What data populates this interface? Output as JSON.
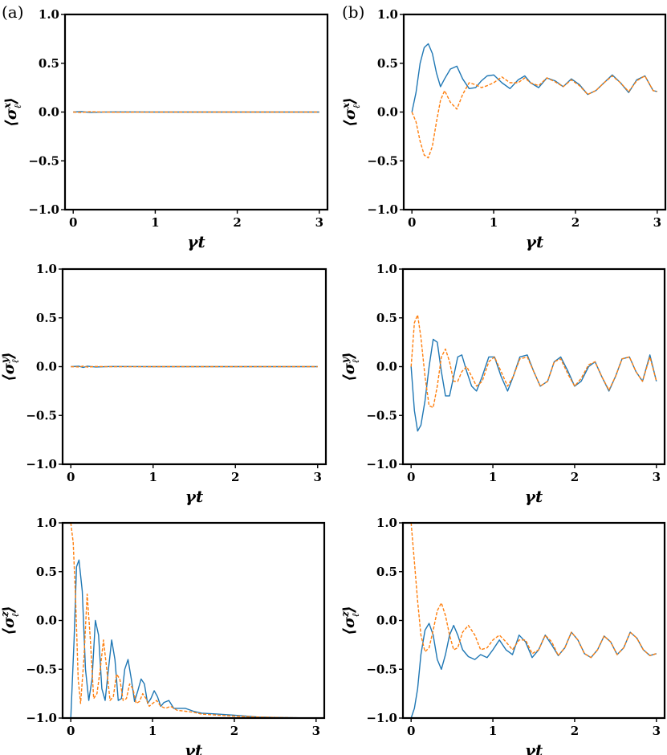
{
  "panel_labels": [
    "(a)",
    "(b)"
  ],
  "colors": {
    "series1": "#1f77b4",
    "series2": "#ff7f0e",
    "axis": "#000000"
  },
  "chart_data": [
    {
      "type": "line",
      "panel": "(a)",
      "row": 0,
      "xlabel": "γt",
      "ylabel": "⟨σ_ℓ^x⟩",
      "ylabel_base": "⟨σ",
      "ylabel_sup": "x",
      "ylabel_sub": "ℓ",
      "ylabel_close": "⟩",
      "xlim": [
        -0.1,
        3.1
      ],
      "ylim": [
        -1.0,
        1.0
      ],
      "xticks": [
        0,
        1,
        2,
        3
      ],
      "xtick_labels": [
        "0",
        "1",
        "2",
        "3"
      ],
      "yticks": [
        -1.0,
        -0.5,
        0.0,
        0.5,
        1.0
      ],
      "ytick_labels": [
        "−1.0",
        "−0.5",
        "0.0",
        "0.5",
        "1.0"
      ],
      "series": [
        {
          "style": "solid",
          "color": "#1f77b4",
          "x": [
            0,
            0.1,
            0.2,
            0.5,
            1,
            2,
            3
          ],
          "y": [
            0,
            0.005,
            -0.003,
            0.002,
            0,
            0,
            0
          ]
        },
        {
          "style": "dashed",
          "color": "#ff7f0e",
          "x": [
            0,
            0.1,
            0.2,
            0.5,
            1,
            2,
            3
          ],
          "y": [
            0,
            -0.004,
            0.003,
            -0.002,
            0,
            0,
            0
          ]
        }
      ]
    },
    {
      "type": "line",
      "panel": "(b)",
      "row": 0,
      "xlabel": "γt",
      "ylabel": "⟨σ_ℓ^x⟩",
      "ylabel_base": "⟨σ",
      "ylabel_sup": "x",
      "ylabel_sub": "ℓ",
      "ylabel_close": "⟩",
      "xlim": [
        -0.1,
        3.1
      ],
      "ylim": [
        -1.0,
        1.0
      ],
      "xticks": [
        0,
        1,
        2,
        3
      ],
      "xtick_labels": [
        "0",
        "1",
        "2",
        "3"
      ],
      "yticks": [
        -1.0,
        -0.5,
        0.0,
        0.5,
        1.0
      ],
      "ytick_labels": [
        "−1.0",
        "−0.5",
        "0.0",
        "0.5",
        "1.0"
      ],
      "series": [
        {
          "style": "solid",
          "color": "#1f77b4",
          "x": [
            0,
            0.05,
            0.1,
            0.15,
            0.2,
            0.25,
            0.3,
            0.35,
            0.4,
            0.47,
            0.55,
            0.62,
            0.7,
            0.78,
            0.85,
            0.92,
            1.0,
            1.1,
            1.2,
            1.3,
            1.38,
            1.45,
            1.55,
            1.65,
            1.75,
            1.85,
            1.95,
            2.05,
            2.15,
            2.25,
            2.35,
            2.45,
            2.55,
            2.65,
            2.75,
            2.85,
            2.95,
            3.0
          ],
          "y": [
            0,
            0.2,
            0.5,
            0.66,
            0.7,
            0.6,
            0.4,
            0.26,
            0.34,
            0.44,
            0.47,
            0.34,
            0.24,
            0.25,
            0.32,
            0.37,
            0.38,
            0.3,
            0.24,
            0.33,
            0.37,
            0.3,
            0.25,
            0.35,
            0.32,
            0.26,
            0.34,
            0.28,
            0.18,
            0.22,
            0.3,
            0.38,
            0.3,
            0.2,
            0.33,
            0.37,
            0.22,
            0.21
          ]
        },
        {
          "style": "dashed",
          "color": "#ff7f0e",
          "x": [
            0,
            0.05,
            0.1,
            0.15,
            0.2,
            0.25,
            0.3,
            0.35,
            0.4,
            0.47,
            0.55,
            0.62,
            0.7,
            0.78,
            0.85,
            0.92,
            1.0,
            1.1,
            1.2,
            1.3,
            1.38,
            1.45,
            1.55,
            1.65,
            1.75,
            1.85,
            1.95,
            2.05,
            2.15,
            2.25,
            2.35,
            2.45,
            2.55,
            2.65,
            2.75,
            2.85,
            2.95,
            3.0
          ],
          "y": [
            0,
            -0.1,
            -0.3,
            -0.44,
            -0.47,
            -0.35,
            -0.1,
            0.12,
            0.22,
            0.1,
            0.03,
            0.18,
            0.3,
            0.28,
            0.25,
            0.27,
            0.3,
            0.36,
            0.3,
            0.3,
            0.35,
            0.3,
            0.27,
            0.35,
            0.31,
            0.26,
            0.33,
            0.27,
            0.18,
            0.22,
            0.3,
            0.37,
            0.3,
            0.21,
            0.32,
            0.37,
            0.22,
            0.21
          ]
        }
      ]
    },
    {
      "type": "line",
      "panel": "(a)",
      "row": 1,
      "xlabel": "γt",
      "ylabel": "⟨σ_ℓ^y⟩",
      "ylabel_base": "⟨σ",
      "ylabel_sup": "y",
      "ylabel_sub": "ℓ",
      "ylabel_close": "⟩",
      "xlim": [
        -0.1,
        3.1
      ],
      "ylim": [
        -1.0,
        1.0
      ],
      "xticks": [
        0,
        1,
        2,
        3
      ],
      "xtick_labels": [
        "0",
        "1",
        "2",
        "3"
      ],
      "yticks": [
        -1.0,
        -0.5,
        0.0,
        0.5,
        1.0
      ],
      "ytick_labels": [
        "−1.0",
        "−0.5",
        "0.0",
        "0.5",
        "1.0"
      ],
      "series": [
        {
          "style": "solid",
          "color": "#1f77b4",
          "x": [
            0,
            0.1,
            0.15,
            0.2,
            0.3,
            0.5,
            1,
            2,
            3
          ],
          "y": [
            0,
            0.004,
            -0.008,
            0.005,
            -0.003,
            0.002,
            0,
            0,
            0
          ]
        },
        {
          "style": "dashed",
          "color": "#ff7f0e",
          "x": [
            0,
            0.1,
            0.15,
            0.2,
            0.3,
            0.5,
            1,
            2,
            3
          ],
          "y": [
            0,
            -0.003,
            0.006,
            -0.004,
            0.002,
            -0.001,
            0,
            0,
            0
          ]
        }
      ]
    },
    {
      "type": "line",
      "panel": "(b)",
      "row": 1,
      "xlabel": "γt",
      "ylabel": "⟨σ_ℓ^y⟩",
      "ylabel_base": "⟨σ",
      "ylabel_sup": "y",
      "ylabel_sub": "ℓ",
      "ylabel_close": "⟩",
      "xlim": [
        -0.1,
        3.1
      ],
      "ylim": [
        -1.0,
        1.0
      ],
      "xticks": [
        0,
        1,
        2,
        3
      ],
      "xtick_labels": [
        "0",
        "1",
        "2",
        "3"
      ],
      "yticks": [
        -1.0,
        -0.5,
        0.0,
        0.5,
        1.0
      ],
      "ytick_labels": [
        "−1.0",
        "−0.5",
        "0.0",
        "0.5",
        "1.0"
      ],
      "series": [
        {
          "style": "solid",
          "color": "#1f77b4",
          "x": [
            0,
            0.04,
            0.08,
            0.12,
            0.17,
            0.22,
            0.27,
            0.32,
            0.37,
            0.42,
            0.47,
            0.52,
            0.57,
            0.62,
            0.68,
            0.74,
            0.8,
            0.87,
            0.95,
            1.02,
            1.1,
            1.18,
            1.25,
            1.33,
            1.42,
            1.5,
            1.58,
            1.67,
            1.75,
            1.83,
            1.92,
            2.0,
            2.08,
            2.17,
            2.25,
            2.33,
            2.42,
            2.5,
            2.58,
            2.67,
            2.75,
            2.83,
            2.92,
            3.0
          ],
          "y": [
            0,
            -0.45,
            -0.66,
            -0.6,
            -0.35,
            0.0,
            0.28,
            0.25,
            -0.05,
            -0.3,
            -0.3,
            -0.1,
            0.1,
            0.12,
            -0.05,
            -0.2,
            -0.25,
            -0.1,
            0.1,
            0.1,
            -0.1,
            -0.25,
            -0.1,
            0.1,
            0.12,
            -0.05,
            -0.2,
            -0.15,
            0.05,
            0.1,
            -0.05,
            -0.2,
            -0.15,
            0.0,
            0.05,
            -0.1,
            -0.25,
            -0.1,
            0.08,
            0.1,
            -0.05,
            -0.15,
            0.12,
            -0.15
          ]
        },
        {
          "style": "dashed",
          "color": "#ff7f0e",
          "x": [
            0,
            0.04,
            0.08,
            0.12,
            0.17,
            0.22,
            0.27,
            0.32,
            0.37,
            0.42,
            0.47,
            0.52,
            0.57,
            0.62,
            0.68,
            0.74,
            0.8,
            0.87,
            0.95,
            1.02,
            1.1,
            1.18,
            1.25,
            1.33,
            1.42,
            1.5,
            1.58,
            1.67,
            1.75,
            1.83,
            1.92,
            2.0,
            2.08,
            2.17,
            2.25,
            2.33,
            2.42,
            2.5,
            2.58,
            2.67,
            2.75,
            2.83,
            2.92,
            3.0
          ],
          "y": [
            0,
            0.45,
            0.53,
            0.3,
            -0.1,
            -0.4,
            -0.42,
            -0.2,
            0.1,
            0.18,
            0.05,
            -0.15,
            -0.15,
            -0.05,
            0.0,
            -0.1,
            -0.2,
            -0.15,
            0.05,
            0.1,
            -0.05,
            -0.2,
            -0.1,
            0.08,
            0.1,
            -0.05,
            -0.2,
            -0.15,
            0.05,
            0.08,
            -0.08,
            -0.2,
            -0.12,
            0.02,
            0.05,
            -0.1,
            -0.24,
            -0.1,
            0.08,
            0.1,
            -0.05,
            -0.15,
            0.1,
            -0.15
          ]
        }
      ]
    },
    {
      "type": "line",
      "panel": "(a)",
      "row": 2,
      "xlabel": "γt",
      "ylabel": "⟨σ_ℓ^z⟩",
      "ylabel_base": "⟨σ",
      "ylabel_sup": "z",
      "ylabel_sub": "ℓ",
      "ylabel_close": "⟩",
      "xlim": [
        -0.1,
        3.1
      ],
      "ylim": [
        -1.0,
        1.0
      ],
      "xticks": [
        0,
        1,
        2,
        3
      ],
      "xtick_labels": [
        "0",
        "1",
        "2",
        "3"
      ],
      "yticks": [
        -1.0,
        -0.5,
        0.0,
        0.5,
        1.0
      ],
      "ytick_labels": [
        "−1.0",
        "−0.5",
        "0.0",
        "0.5",
        "1.0"
      ],
      "series": [
        {
          "style": "solid",
          "color": "#1f77b4",
          "x": [
            0,
            0.04,
            0.07,
            0.1,
            0.14,
            0.18,
            0.22,
            0.26,
            0.3,
            0.34,
            0.38,
            0.42,
            0.46,
            0.5,
            0.54,
            0.58,
            0.62,
            0.66,
            0.7,
            0.74,
            0.78,
            0.82,
            0.86,
            0.9,
            0.94,
            0.98,
            1.02,
            1.06,
            1.1,
            1.14,
            1.2,
            1.26,
            1.32,
            1.4,
            1.5,
            1.6,
            1.8,
            2.0,
            2.3,
            2.6,
            3.0
          ],
          "y": [
            -1.0,
            -0.2,
            0.55,
            0.62,
            0.3,
            -0.5,
            -0.82,
            -0.6,
            0.0,
            -0.15,
            -0.7,
            -0.82,
            -0.5,
            -0.2,
            -0.4,
            -0.82,
            -0.8,
            -0.5,
            -0.4,
            -0.6,
            -0.83,
            -0.72,
            -0.6,
            -0.65,
            -0.85,
            -0.8,
            -0.72,
            -0.78,
            -0.88,
            -0.84,
            -0.82,
            -0.9,
            -0.9,
            -0.9,
            -0.93,
            -0.95,
            -0.96,
            -0.97,
            -0.99,
            -0.995,
            -1.0
          ]
        },
        {
          "style": "dashed",
          "color": "#ff7f0e",
          "x": [
            0,
            0.03,
            0.06,
            0.09,
            0.12,
            0.16,
            0.2,
            0.24,
            0.28,
            0.32,
            0.36,
            0.4,
            0.44,
            0.48,
            0.52,
            0.56,
            0.6,
            0.64,
            0.68,
            0.72,
            0.76,
            0.8,
            0.84,
            0.88,
            0.92,
            0.96,
            1.0,
            1.05,
            1.1,
            1.16,
            1.22,
            1.3,
            1.4,
            1.5,
            1.6,
            1.8,
            2.0,
            2.3,
            2.6,
            3.0
          ],
          "y": [
            1.0,
            0.8,
            0.2,
            -0.6,
            -0.85,
            -0.4,
            0.27,
            -0.2,
            -0.8,
            -0.75,
            -0.5,
            -0.2,
            -0.5,
            -0.82,
            -0.78,
            -0.55,
            -0.6,
            -0.82,
            -0.8,
            -0.65,
            -0.7,
            -0.85,
            -0.83,
            -0.75,
            -0.8,
            -0.88,
            -0.85,
            -0.82,
            -0.88,
            -0.9,
            -0.88,
            -0.92,
            -0.93,
            -0.94,
            -0.96,
            -0.97,
            -0.98,
            -0.99,
            -0.995,
            -1.0
          ]
        }
      ]
    },
    {
      "type": "line",
      "panel": "(b)",
      "row": 2,
      "xlabel": "γt",
      "ylabel": "⟨σ_ℓ^z⟩",
      "ylabel_base": "⟨σ",
      "ylabel_sup": "z",
      "ylabel_sub": "ℓ",
      "ylabel_close": "⟩",
      "xlim": [
        -0.1,
        3.1
      ],
      "ylim": [
        -1.0,
        1.0
      ],
      "xticks": [
        0,
        1,
        2,
        3
      ],
      "xtick_labels": [
        "0",
        "1",
        "2",
        "3"
      ],
      "yticks": [
        -1.0,
        -0.5,
        0.0,
        0.5,
        1.0
      ],
      "ytick_labels": [
        "−1.0",
        "−0.5",
        "0.0",
        "0.5",
        "1.0"
      ],
      "series": [
        {
          "style": "solid",
          "color": "#1f77b4",
          "x": [
            0,
            0.04,
            0.08,
            0.12,
            0.17,
            0.22,
            0.27,
            0.32,
            0.37,
            0.42,
            0.47,
            0.52,
            0.57,
            0.63,
            0.7,
            0.78,
            0.85,
            0.93,
            1.0,
            1.08,
            1.16,
            1.24,
            1.32,
            1.4,
            1.48,
            1.56,
            1.64,
            1.72,
            1.8,
            1.88,
            1.96,
            2.04,
            2.12,
            2.2,
            2.28,
            2.36,
            2.44,
            2.52,
            2.6,
            2.68,
            2.76,
            2.84,
            2.92,
            3.0
          ],
          "y": [
            -1.0,
            -0.9,
            -0.7,
            -0.35,
            -0.1,
            -0.03,
            -0.15,
            -0.4,
            -0.5,
            -0.35,
            -0.15,
            -0.05,
            -0.15,
            -0.3,
            -0.37,
            -0.4,
            -0.35,
            -0.38,
            -0.3,
            -0.2,
            -0.3,
            -0.35,
            -0.15,
            -0.22,
            -0.38,
            -0.3,
            -0.15,
            -0.25,
            -0.36,
            -0.28,
            -0.12,
            -0.2,
            -0.34,
            -0.38,
            -0.3,
            -0.16,
            -0.22,
            -0.35,
            -0.28,
            -0.12,
            -0.18,
            -0.3,
            -0.36,
            -0.34
          ]
        },
        {
          "style": "dashed",
          "color": "#ff7f0e",
          "x": [
            0,
            0.04,
            0.08,
            0.12,
            0.17,
            0.22,
            0.27,
            0.32,
            0.37,
            0.42,
            0.47,
            0.52,
            0.57,
            0.63,
            0.7,
            0.78,
            0.85,
            0.93,
            1.0,
            1.08,
            1.16,
            1.24,
            1.32,
            1.4,
            1.48,
            1.56,
            1.64,
            1.72,
            1.8,
            1.88,
            1.96,
            2.04,
            2.12,
            2.2,
            2.28,
            2.36,
            2.44,
            2.52,
            2.6,
            2.68,
            2.76,
            2.84,
            2.92,
            3.0
          ],
          "y": [
            1.0,
            0.6,
            0.2,
            -0.15,
            -0.32,
            -0.28,
            -0.1,
            0.1,
            0.18,
            0.05,
            -0.15,
            -0.3,
            -0.28,
            -0.12,
            -0.05,
            -0.15,
            -0.3,
            -0.28,
            -0.2,
            -0.15,
            -0.22,
            -0.3,
            -0.2,
            -0.2,
            -0.34,
            -0.3,
            -0.15,
            -0.22,
            -0.36,
            -0.28,
            -0.12,
            -0.2,
            -0.34,
            -0.38,
            -0.3,
            -0.16,
            -0.22,
            -0.35,
            -0.28,
            -0.12,
            -0.18,
            -0.3,
            -0.36,
            -0.34
          ]
        }
      ]
    }
  ]
}
